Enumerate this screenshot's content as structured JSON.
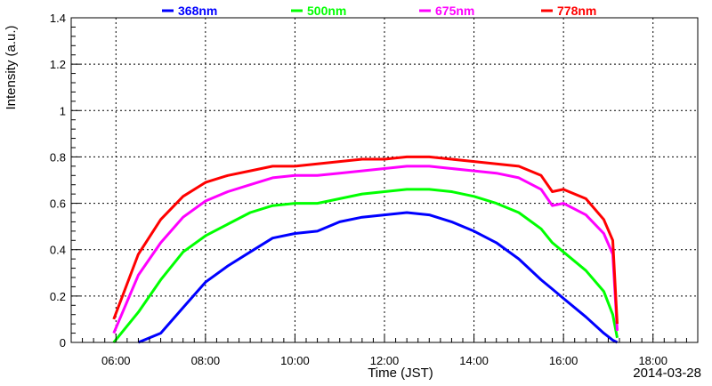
{
  "chart_data": {
    "type": "line",
    "title": "",
    "xlabel": "Time (JST)",
    "ylabel": "Intensity (a.u.)",
    "date_label": "2014-03-28",
    "x_unit": "hours JST",
    "xlim": [
      5.0,
      19.0
    ],
    "ylim": [
      0,
      1.4
    ],
    "x_ticks": [
      6,
      8,
      10,
      12,
      14,
      16,
      18
    ],
    "x_tick_labels": [
      "06:00",
      "08:00",
      "10:00",
      "12:00",
      "14:00",
      "16:00",
      "18:00"
    ],
    "y_ticks": [
      0,
      0.2,
      0.4,
      0.6,
      0.8,
      1.0,
      1.2,
      1.4
    ],
    "y_tick_labels": [
      "0",
      "0.2",
      "0.4",
      "0.6",
      "0.8",
      "1",
      "1.2",
      "1.4"
    ],
    "grid": true,
    "legend_position": "top",
    "x": [
      5.95,
      6.5,
      7.0,
      7.5,
      8.0,
      8.5,
      9.0,
      9.5,
      10.0,
      10.5,
      11.0,
      11.5,
      12.0,
      12.5,
      13.0,
      13.5,
      14.0,
      14.5,
      15.0,
      15.5,
      15.75,
      16.0,
      16.5,
      16.9,
      17.1,
      17.2
    ],
    "series": [
      {
        "name": "368nm",
        "color": "#0000ff",
        "values": [
          null,
          0.0,
          0.04,
          0.15,
          0.26,
          0.33,
          0.39,
          0.45,
          0.47,
          0.48,
          0.52,
          0.54,
          0.55,
          0.56,
          0.55,
          0.52,
          0.48,
          0.43,
          0.36,
          0.27,
          0.23,
          0.19,
          0.11,
          0.04,
          0.01,
          0.0
        ]
      },
      {
        "name": "500nm",
        "color": "#00ff00",
        "values": [
          0.0,
          0.13,
          0.27,
          0.39,
          0.46,
          0.51,
          0.56,
          0.59,
          0.6,
          0.6,
          0.62,
          0.64,
          0.65,
          0.66,
          0.66,
          0.65,
          0.63,
          0.6,
          0.56,
          0.49,
          0.43,
          0.39,
          0.31,
          0.22,
          0.12,
          0.02
        ]
      },
      {
        "name": "675nm",
        "color": "#ff00ff",
        "values": [
          0.04,
          0.29,
          0.43,
          0.54,
          0.61,
          0.65,
          0.68,
          0.71,
          0.72,
          0.72,
          0.73,
          0.74,
          0.75,
          0.76,
          0.76,
          0.75,
          0.74,
          0.73,
          0.71,
          0.66,
          0.59,
          0.6,
          0.55,
          0.47,
          0.38,
          0.05
        ]
      },
      {
        "name": "778nm",
        "color": "#ff0000",
        "values": [
          0.1,
          0.38,
          0.53,
          0.63,
          0.69,
          0.72,
          0.74,
          0.76,
          0.76,
          0.77,
          0.78,
          0.79,
          0.79,
          0.8,
          0.8,
          0.79,
          0.78,
          0.77,
          0.76,
          0.72,
          0.65,
          0.66,
          0.62,
          0.53,
          0.44,
          0.08
        ]
      }
    ]
  }
}
